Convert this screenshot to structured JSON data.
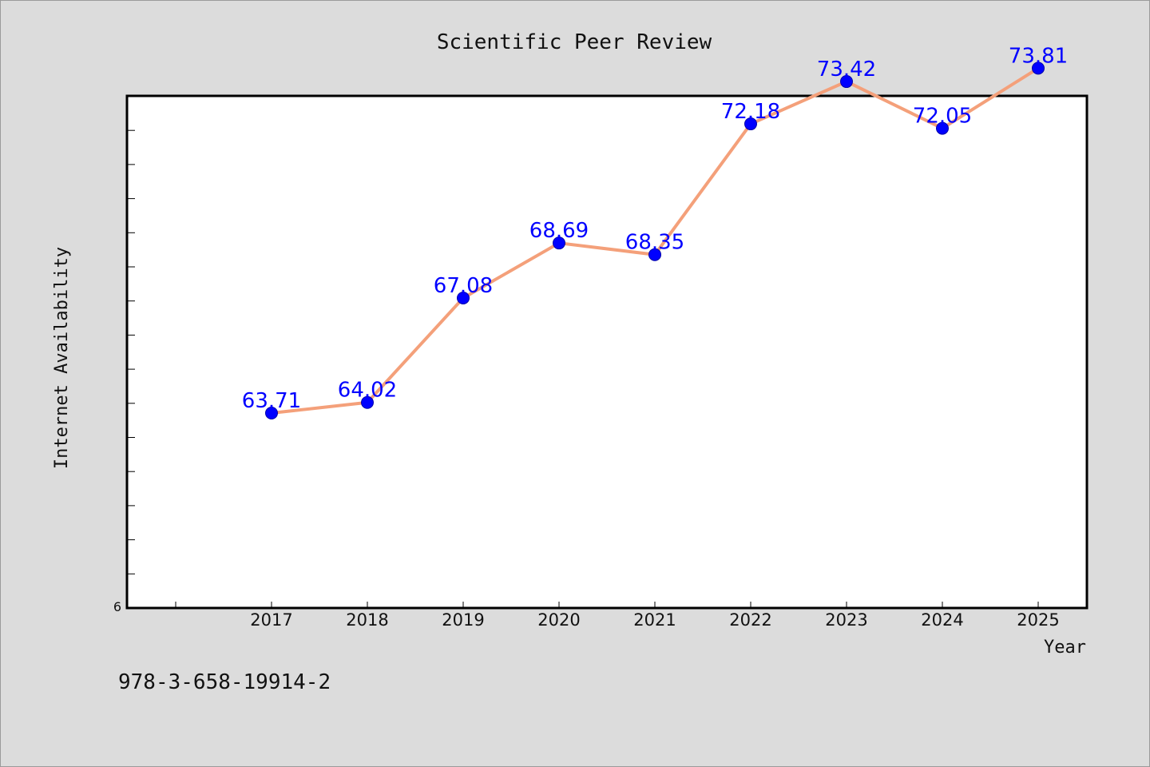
{
  "chart_data": {
    "type": "line",
    "title": "Scientific Peer Review",
    "xlabel": "Year",
    "ylabel": "Internet Availability",
    "categories": [
      "2017",
      "2018",
      "2019",
      "2020",
      "2021",
      "2022",
      "2023",
      "2024",
      "2025"
    ],
    "series": [
      {
        "values": [
          63.71,
          64.02,
          67.08,
          68.69,
          68.35,
          72.18,
          73.42,
          72.05,
          73.81
        ]
      }
    ],
    "value_labels": [
      "63.71",
      "64.02",
      "67.08",
      "68.69",
      "68.35",
      "72.18",
      "73.42",
      "72.05",
      "73.81"
    ],
    "y_tick_labels": [
      "6"
    ],
    "ylim": [
      58.0,
      73.0
    ],
    "grid": false,
    "line_color": "#f4a07a",
    "marker_color": "#0000ff",
    "label_color": "#0000ff"
  },
  "footer": {
    "text": "978-3-658-19914-2"
  }
}
